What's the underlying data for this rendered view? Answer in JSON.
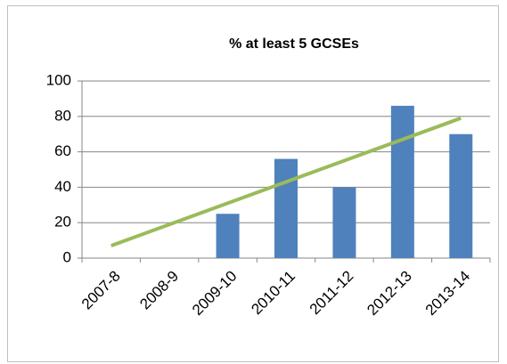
{
  "chart_data": {
    "type": "bar",
    "title": "% at least 5 GCSEs",
    "categories": [
      "2007-8",
      "2008-9",
      "2009-10",
      "2010-11",
      "2011-12",
      "2012-13",
      "2013-14"
    ],
    "values": [
      null,
      null,
      25,
      56,
      40,
      86,
      70
    ],
    "color": "#4f81bd",
    "trendline": {
      "color": "#9bbb59",
      "values": [
        7,
        79
      ]
    },
    "ylim": [
      0,
      100
    ],
    "yticks": [
      0,
      20,
      40,
      60,
      80,
      100
    ],
    "grid": true
  }
}
